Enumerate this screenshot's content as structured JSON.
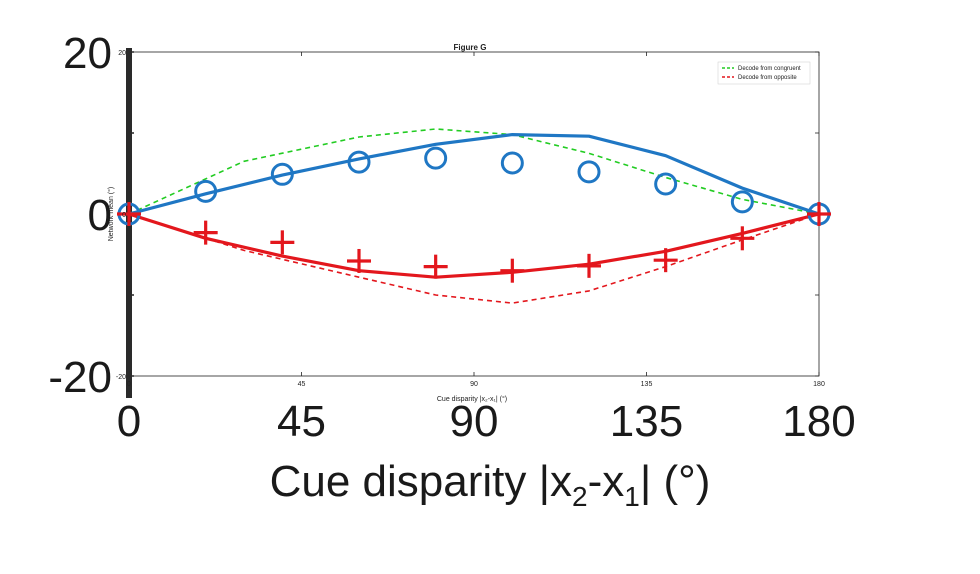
{
  "chart_data": {
    "type": "line",
    "title": "Figure G",
    "xlabel_small": "Cue disparity |x₂-x₁| (°)",
    "ylabel_small": "Network mean (°)",
    "xlabel_big_main": "Cue disparity |x",
    "xlabel_big_sub1": "2",
    "xlabel_big_mid": "-x",
    "xlabel_big_sub2": "1",
    "xlabel_big_end": "| (°)",
    "xlim": [
      0,
      180
    ],
    "ylim": [
      -20,
      20
    ],
    "xticks": [
      "0",
      "45",
      "90",
      "135",
      "180"
    ],
    "yticks": [
      "20",
      "0",
      "-20"
    ],
    "small_yticks": [
      "20",
      "0",
      "-20"
    ],
    "legend_position": "top-right",
    "colors": {
      "blue": "#1f77c4",
      "red": "#e3171d",
      "green": "#22cc22",
      "axis": "#222222"
    },
    "series": [
      {
        "name": "Decode from congruent",
        "style": "dashed",
        "color": "#22cc22",
        "x": [
          0,
          30,
          60,
          80,
          100,
          120,
          140,
          160,
          180
        ],
        "y": [
          0,
          6.5,
          9.5,
          10.5,
          9.8,
          7.5,
          4.5,
          1.8,
          0
        ]
      },
      {
        "name": "Decode from opposite",
        "style": "dashed",
        "color": "#e3171d",
        "x": [
          0,
          30,
          60,
          80,
          100,
          120,
          140,
          160,
          180
        ],
        "y": [
          0,
          -4.5,
          -7.8,
          -10.0,
          -11.0,
          -9.5,
          -6.5,
          -3.2,
          0
        ]
      },
      {
        "name": "",
        "style": "solid",
        "color": "#1f77c4",
        "x": [
          0,
          20,
          40,
          60,
          80,
          100,
          120,
          140,
          160,
          180
        ],
        "y": [
          0,
          2.5,
          4.8,
          6.8,
          8.6,
          9.8,
          9.6,
          7.2,
          3.2,
          0
        ]
      },
      {
        "name": "",
        "style": "solid",
        "color": "#e3171d",
        "x": [
          0,
          20,
          40,
          60,
          80,
          100,
          120,
          140,
          160,
          180
        ],
        "y": [
          0,
          -3.0,
          -5.2,
          -7.0,
          -7.8,
          -7.2,
          -6.2,
          -4.6,
          -2.4,
          0
        ]
      },
      {
        "name": "",
        "style": "marker-circle",
        "color": "#1f77c4",
        "x": [
          0,
          20,
          40,
          60,
          80,
          100,
          120,
          140,
          160,
          180
        ],
        "y": [
          0,
          2.8,
          4.9,
          6.4,
          6.9,
          6.3,
          5.2,
          3.7,
          1.5,
          0
        ]
      },
      {
        "name": "",
        "style": "marker-plus",
        "color": "#e3171d",
        "x": [
          0,
          20,
          40,
          60,
          80,
          100,
          120,
          140,
          160,
          180
        ],
        "y": [
          0,
          -2.3,
          -3.5,
          -5.8,
          -6.5,
          -7.0,
          -6.4,
          -5.7,
          -3.0,
          0
        ]
      }
    ]
  }
}
